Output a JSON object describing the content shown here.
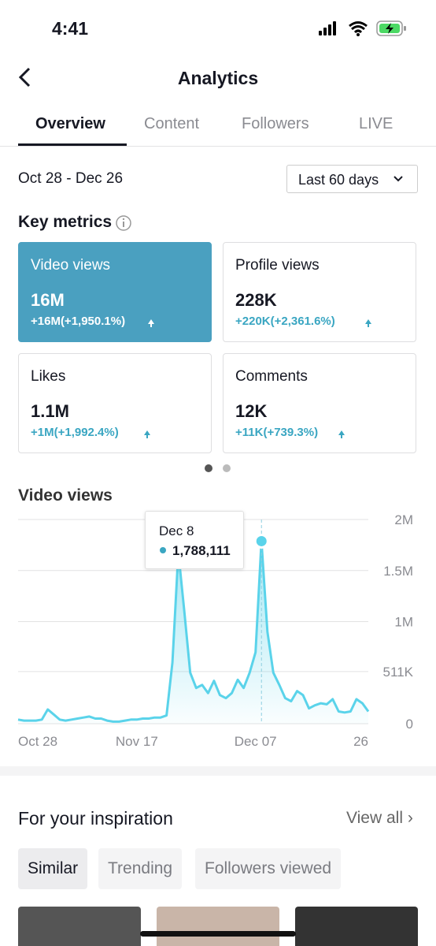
{
  "status_bar": {
    "time": "4:41"
  },
  "header": {
    "title": "Analytics"
  },
  "tabs": [
    "Overview",
    "Content",
    "Followers",
    "LIVE"
  ],
  "date_range": {
    "range": "Oct 28 - Dec 26",
    "dropdown": "Last 60 days"
  },
  "key_metrics": {
    "title": "Key metrics",
    "cards": [
      {
        "title": "Video views",
        "value": "16M",
        "change": "+16M(+1,950.1%)"
      },
      {
        "title": "Profile views",
        "value": "228K",
        "change": "+220K(+2,361.6%)"
      },
      {
        "title": "Likes",
        "value": "1.1M",
        "change": "+1M(+1,992.4%)"
      },
      {
        "title": "Comments",
        "value": "12K",
        "change": "+11K(+739.3%)"
      }
    ]
  },
  "chart_data": {
    "type": "line",
    "title": "Video views",
    "categories": [
      "Oct 28",
      null,
      null,
      null,
      null,
      null,
      null,
      null,
      null,
      null,
      null,
      null,
      null,
      null,
      null,
      null,
      null,
      null,
      null,
      null,
      "Nov 17",
      null,
      null,
      null,
      null,
      null,
      null,
      null,
      null,
      null,
      null,
      null,
      null,
      null,
      null,
      null,
      null,
      null,
      null,
      null,
      "Dec 07",
      null,
      null,
      null,
      null,
      null,
      null,
      null,
      null,
      null,
      null,
      null,
      null,
      null,
      null,
      null,
      null,
      null,
      null,
      "26"
    ],
    "series": [
      {
        "color": "#5ad3ea",
        "values": [
          40000,
          30000,
          30000,
          30000,
          40000,
          140000,
          90000,
          40000,
          30000,
          40000,
          50000,
          60000,
          70000,
          50000,
          50000,
          30000,
          20000,
          20000,
          30000,
          40000,
          40000,
          50000,
          50000,
          60000,
          60000,
          80000,
          600000,
          1680000,
          1100000,
          500000,
          350000,
          380000,
          300000,
          420000,
          280000,
          250000,
          300000,
          430000,
          350000,
          500000,
          700000,
          1788111,
          900000,
          500000,
          380000,
          250000,
          220000,
          320000,
          280000,
          150000,
          180000,
          200000,
          190000,
          240000,
          120000,
          110000,
          120000,
          240000,
          200000,
          120000
        ]
      }
    ],
    "ylim": [
      0,
      2000000
    ],
    "yticks": [
      0,
      {
        "value": 511000,
        "label": "511K"
      },
      {
        "value": 1000000,
        "label": "1M"
      },
      {
        "value": 1500000,
        "label": "1.5M"
      },
      {
        "value": 2000000,
        "label": "2M"
      }
    ],
    "grid": true,
    "tooltip": {
      "date": "Dec 8",
      "value": "1,788,111"
    }
  },
  "inspiration": {
    "title": "For your inspiration",
    "view_all": "View all",
    "chips": [
      "Similar",
      "Trending",
      "Followers viewed"
    ]
  }
}
